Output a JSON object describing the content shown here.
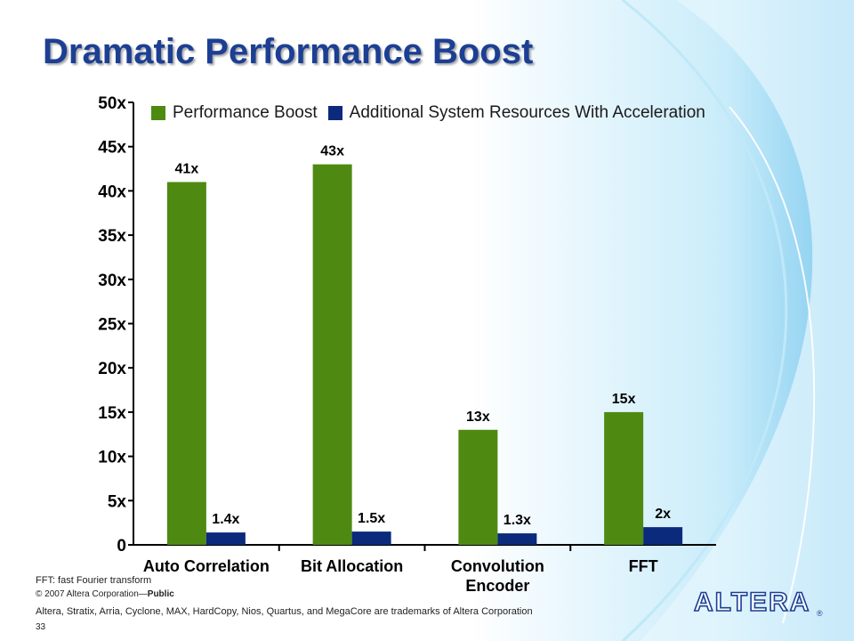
{
  "slide": {
    "title": "Dramatic Performance Boost",
    "footnote": "FFT: fast Fourier transform",
    "copyright_prefix": "© 2007 Altera Corporation—",
    "copyright_bold": "Public",
    "trademark": "Altera, Stratix, Arria, Cyclone, MAX, HardCopy, Nios, Quartus, and MegaCore are trademarks of Altera Corporation",
    "page_number": "33",
    "logo_text": "ALTERA",
    "logo_mark": "®"
  },
  "colors": {
    "title": "#1c3f94",
    "series_green": "#4e8a12",
    "series_navy": "#0b2a7c",
    "swoosh": "#8fd0f0"
  },
  "chart_data": {
    "type": "bar",
    "categories": [
      [
        "Auto Correlation"
      ],
      [
        "Bit Allocation"
      ],
      [
        "Convolution",
        "Encoder"
      ],
      [
        "FFT"
      ]
    ],
    "series": [
      {
        "name": "Performance Boost",
        "values": [
          41,
          43,
          13,
          15
        ],
        "labels": [
          "41x",
          "43x",
          "13x",
          "15x"
        ]
      },
      {
        "name": "Additional System Resources With Acceleration",
        "values": [
          1.4,
          1.5,
          1.3,
          2
        ],
        "labels": [
          "1.4x",
          "1.5x",
          "1.3x",
          "2x"
        ]
      }
    ],
    "ylim": [
      0,
      50
    ],
    "yticks": [
      "0",
      "5x",
      "10x",
      "15x",
      "20x",
      "25x",
      "30x",
      "35x",
      "40x",
      "45x",
      "50x"
    ],
    "legend": "top",
    "grid": false
  }
}
